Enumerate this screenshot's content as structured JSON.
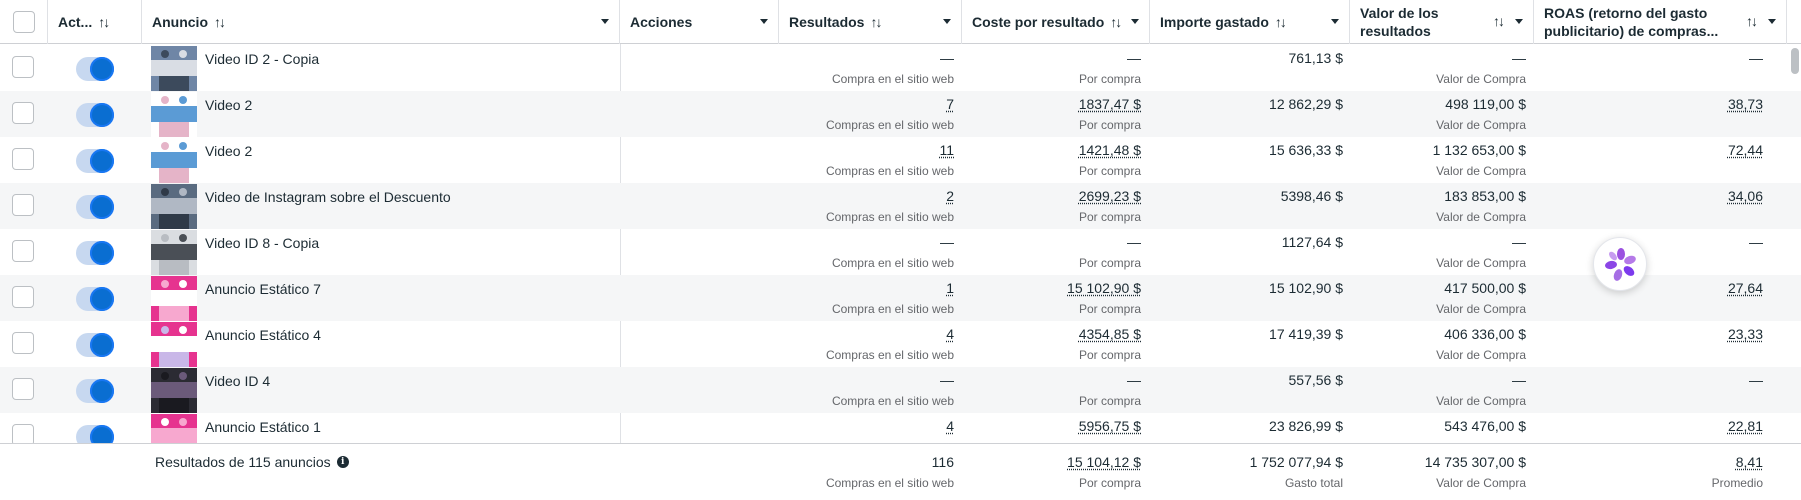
{
  "columns": {
    "active": "Act...",
    "ad": "Anuncio",
    "actions": "Acciones",
    "results": "Resultados",
    "cost_per_result": "Coste por resultado",
    "amount_spent": "Importe gastado",
    "results_value_line1": "Valor de los",
    "results_value_line2": "resultados",
    "roas_line1": "ROAS (retorno del gasto",
    "roas_line2": "publicitario) de compras..."
  },
  "icons": {
    "sort": "sort-arrows-icon",
    "dropdown": "chevron-down-icon",
    "info": "info-icon",
    "loading": "loading-spinner-icon"
  },
  "colors": {
    "toggle_on": "#1877f2",
    "row_alt": "#f5f6f7",
    "loader_purple": "#9b51e0"
  },
  "rows": [
    {
      "name": "Video ID 2 - Copia",
      "results": "—",
      "results_sub": "Compra en el sitio web",
      "cost": "—",
      "cost_sub": "Por compra",
      "spent": "761,13 $",
      "value": "—",
      "value_sub": "Valor de Compra",
      "roas": "—"
    },
    {
      "name": "Video 2",
      "results": "7",
      "results_sub": "Compras en el sitio web",
      "cost": "1837,47 $",
      "cost_sub": "Por compra",
      "spent": "12 862,29 $",
      "value": "498 119,00 $",
      "value_sub": "Valor de Compra",
      "roas": "38,73"
    },
    {
      "name": "Video 2",
      "results": "11",
      "results_sub": "Compras en el sitio web",
      "cost": "1421,48 $",
      "cost_sub": "Por compra",
      "spent": "15 636,33 $",
      "value": "1 132 653,00 $",
      "value_sub": "Valor de Compra",
      "roas": "72,44"
    },
    {
      "name": "Video de Instagram sobre el Descuento",
      "results": "2",
      "results_sub": "Compras en el sitio web",
      "cost": "2699,23 $",
      "cost_sub": "Por compra",
      "spent": "5398,46 $",
      "value": "183 853,00 $",
      "value_sub": "Valor de Compra",
      "roas": "34,06"
    },
    {
      "name": "Video ID 8 - Copia",
      "results": "—",
      "results_sub": "Compra en el sitio web",
      "cost": "—",
      "cost_sub": "Por compra",
      "spent": "1127,64 $",
      "value": "—",
      "value_sub": "Valor de Compra",
      "roas": "—"
    },
    {
      "name": "Anuncio Estático 7",
      "results": "1",
      "results_sub": "Compra en el sitio web",
      "cost": "15 102,90 $",
      "cost_sub": "Por compra",
      "spent": "15 102,90 $",
      "value": "417 500,00 $",
      "value_sub": "Valor de Compra",
      "roas": "27,64"
    },
    {
      "name": "Anuncio Estático 4",
      "results": "4",
      "results_sub": "Compras en el sitio web",
      "cost": "4354,85 $",
      "cost_sub": "Por compra",
      "spent": "17 419,39 $",
      "value": "406 336,00 $",
      "value_sub": "Valor de Compra",
      "roas": "23,33"
    },
    {
      "name": "Video ID 4",
      "results": "—",
      "results_sub": "Compra en el sitio web",
      "cost": "—",
      "cost_sub": "Por compra",
      "spent": "557,56 $",
      "value": "—",
      "value_sub": "Valor de Compra",
      "roas": "—"
    },
    {
      "name": "Anuncio Estático 1",
      "results": "4",
      "results_sub": "",
      "cost": "5956,75 $",
      "cost_sub": "",
      "spent": "23 826,99 $",
      "value": "543 476,00 $",
      "value_sub": "",
      "roas": "22,81"
    }
  ],
  "footer": {
    "label": "Resultados de 115 anuncios",
    "results": "116",
    "results_sub": "Compras en el sitio web",
    "cost": "15 104,12 $",
    "cost_sub": "Por compra",
    "spent": "1 752 077,94 $",
    "spent_sub": "Gasto total",
    "value": "14 735 307,00 $",
    "value_sub": "Valor de Compra",
    "roas": "8,41",
    "roas_sub": "Promedio"
  }
}
